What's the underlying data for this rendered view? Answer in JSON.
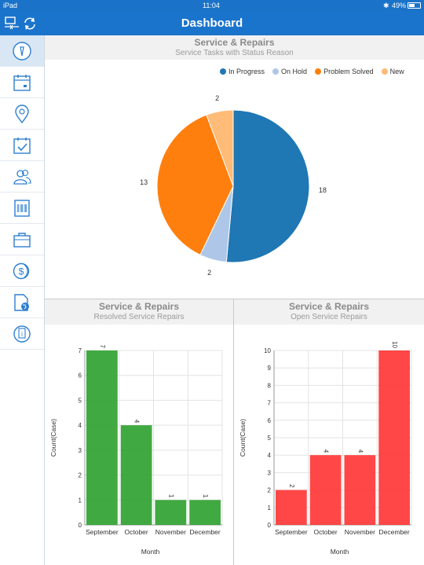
{
  "status_bar": {
    "device": "iPad",
    "time": "11:04",
    "battery": "49%"
  },
  "header": {
    "title": "Dashboard",
    "left_icons": [
      "disconnect-icon",
      "refresh-icon"
    ]
  },
  "sidebar": {
    "items": [
      {
        "icon": "info-icon",
        "active": true
      },
      {
        "icon": "calendar-icon",
        "active": false
      },
      {
        "icon": "location-pin-icon",
        "active": false
      },
      {
        "icon": "calendar-check-icon",
        "active": false
      },
      {
        "icon": "contacts-icon",
        "active": false
      },
      {
        "icon": "barcode-icon",
        "active": false
      },
      {
        "icon": "briefcase-icon",
        "active": false
      },
      {
        "icon": "dollar-coins-icon",
        "active": false
      },
      {
        "icon": "document-globe-icon",
        "active": false
      },
      {
        "icon": "info-doc-icon",
        "active": false
      }
    ]
  },
  "panels": {
    "top": {
      "title": "Service & Repairs",
      "subtitle": "Service Tasks with Status Reason"
    },
    "bottom_left": {
      "title": "Service & Repairs",
      "subtitle": "Resolved Service Repairs"
    },
    "bottom_right": {
      "title": "Service & Repairs",
      "subtitle": "Open Service Repairs"
    }
  },
  "chart_data": [
    {
      "type": "pie",
      "labels": [
        "In Progress",
        "On Hold",
        "Problem Solved",
        "New"
      ],
      "values": [
        18,
        2,
        13,
        2
      ],
      "colors": [
        "#1f77b4",
        "#aec7e8",
        "#ff7f0e",
        "#ffbb78"
      ],
      "legend": "top-right"
    },
    {
      "type": "bar",
      "categories": [
        "September",
        "October",
        "November",
        "December"
      ],
      "values": [
        7,
        4,
        1,
        1
      ],
      "xlabel": "Month",
      "ylabel": "Count(Case)",
      "ylim": [
        0,
        7
      ],
      "yticks": [
        0,
        1,
        2,
        3,
        4,
        5,
        6,
        7
      ],
      "color": "#2ca02c",
      "grid": true
    },
    {
      "type": "bar",
      "categories": [
        "September",
        "October",
        "November",
        "December"
      ],
      "values": [
        2,
        4,
        4,
        10
      ],
      "xlabel": "Month",
      "ylabel": "Count(Case)",
      "ylim": [
        0,
        10
      ],
      "yticks": [
        0,
        1,
        2,
        3,
        4,
        5,
        6,
        7,
        8,
        9,
        10
      ],
      "color": "#ff3333",
      "grid": true
    }
  ]
}
